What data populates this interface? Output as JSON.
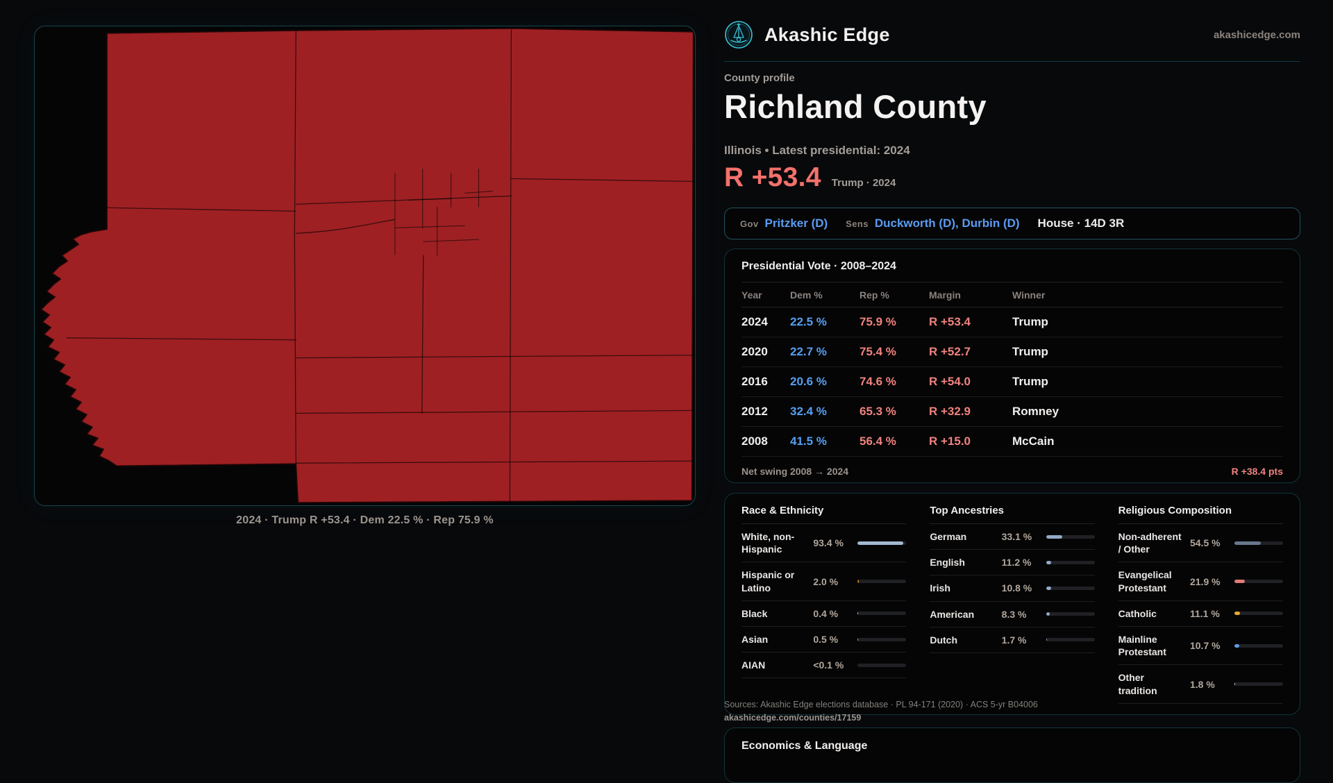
{
  "header": {
    "brand": "Akashic Edge",
    "site": "akashicedge.com"
  },
  "profile": {
    "eyebrow": "County profile",
    "title": "Richland County",
    "subtitle": "Illinois • Latest presidential: 2024",
    "margin_big": "R +53.4",
    "margin_context": "Trump · 2024"
  },
  "officials": {
    "gov_label": "Gov",
    "gov": "Pritzker (D)",
    "sens_label": "Sens",
    "sens": "Duckworth (D), Durbin (D)",
    "house": "House · 14D 3R"
  },
  "map": {
    "caption": "2024 · Trump R +53.4 · Dem 22.5 % · Rep 75.9 %",
    "fill_color": "#9e2023",
    "border_color": "#17464f"
  },
  "vote_table": {
    "title": "Presidential Vote · 2008–2024",
    "columns": [
      "Year",
      "Dem %",
      "Rep %",
      "Margin",
      "Winner"
    ],
    "rows": [
      {
        "year": "2024",
        "dem": "22.5 %",
        "rep": "75.9 %",
        "margin": "R +53.4",
        "winner": "Trump"
      },
      {
        "year": "2020",
        "dem": "22.7 %",
        "rep": "75.4 %",
        "margin": "R +52.7",
        "winner": "Trump"
      },
      {
        "year": "2016",
        "dem": "20.6 %",
        "rep": "74.6 %",
        "margin": "R +54.0",
        "winner": "Trump"
      },
      {
        "year": "2012",
        "dem": "32.4 %",
        "rep": "65.3 %",
        "margin": "R +32.9",
        "winner": "Romney"
      },
      {
        "year": "2008",
        "dem": "41.5 %",
        "rep": "56.4 %",
        "margin": "R +15.0",
        "winner": "McCain"
      }
    ],
    "net_swing_label": "Net swing 2008 → 2024",
    "net_swing_value": "R +38.4 pts"
  },
  "demographics": {
    "sections": [
      {
        "id": "race",
        "title": "Race & Ethnicity",
        "rows": [
          {
            "label": "White, non-Hispanic",
            "value": "93.4 %",
            "pct": 93.4,
            "color": "#a4b8d2"
          },
          {
            "label": "Hispanic or Latino",
            "value": "2.0 %",
            "pct": 2.0,
            "color": "#c8781f"
          },
          {
            "label": "Black",
            "value": "0.4 %",
            "pct": 0.4,
            "color": "#a4b8d2"
          },
          {
            "label": "Asian",
            "value": "0.5 %",
            "pct": 0.5,
            "color": "#a4b8d2"
          },
          {
            "label": "AIAN",
            "value": "<0.1 %",
            "pct": 0.05,
            "color": "#a4b8d2"
          }
        ]
      },
      {
        "id": "ancestries",
        "title": "Top Ancestries",
        "rows": [
          {
            "label": "German",
            "value": "33.1 %",
            "pct": 33.1,
            "color": "#93a9c6"
          },
          {
            "label": "English",
            "value": "11.2 %",
            "pct": 11.2,
            "color": "#93a9c6"
          },
          {
            "label": "Irish",
            "value": "10.8 %",
            "pct": 10.8,
            "color": "#93a9c6"
          },
          {
            "label": "American",
            "value": "8.3 %",
            "pct": 8.3,
            "color": "#93a9c6"
          },
          {
            "label": "Dutch",
            "value": "1.7 %",
            "pct": 1.7,
            "color": "#93a9c6"
          }
        ]
      },
      {
        "id": "religion",
        "title": "Religious Composition",
        "rows": [
          {
            "label": "Non-adherent / Other",
            "value": "54.5 %",
            "pct": 54.5,
            "color": "#67778c"
          },
          {
            "label": "Evangelical Protestant",
            "value": "21.9 %",
            "pct": 21.9,
            "color": "#e07a76"
          },
          {
            "label": "Catholic",
            "value": "11.1 %",
            "pct": 11.1,
            "color": "#e3ab2f"
          },
          {
            "label": "Mainline Protestant",
            "value": "10.7 %",
            "pct": 10.7,
            "color": "#5f9ae8"
          },
          {
            "label": "Other tradition",
            "value": "1.8 %",
            "pct": 1.8,
            "color": "#d9d9d9"
          }
        ]
      }
    ]
  },
  "sources": {
    "line1": "Sources: Akashic Edge elections database · PL 94-171 (2020) · ACS 5-yr B04006",
    "line2": "akashicedge.com/counties/17159"
  },
  "economics": {
    "title": "Economics & Language"
  }
}
